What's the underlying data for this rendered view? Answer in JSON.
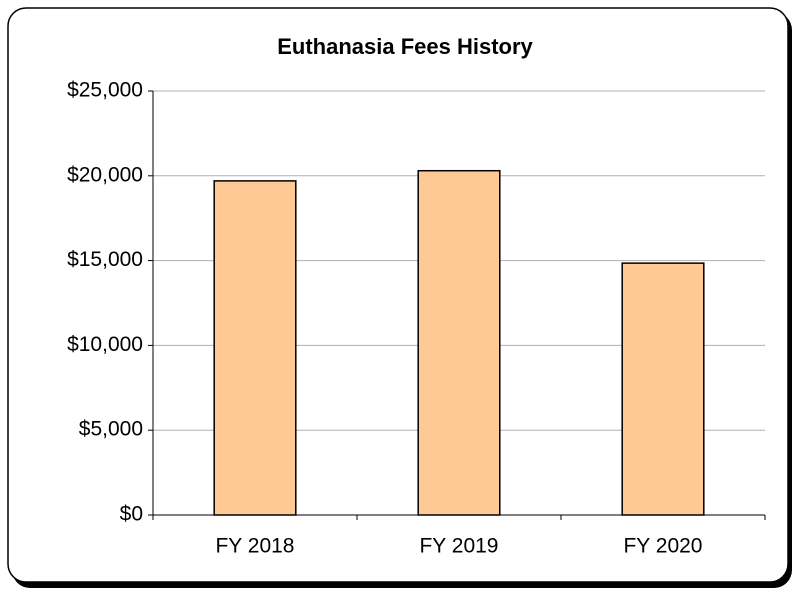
{
  "chart_data": {
    "type": "bar",
    "title": "Euthanasia Fees History",
    "categories": [
      "FY 2018",
      "FY 2019",
      "FY 2020"
    ],
    "values": [
      19700,
      20300,
      14850
    ],
    "color": "#ffc996",
    "ylim": [
      0,
      25000
    ],
    "yticks": [
      {
        "value": 0,
        "label": "$0"
      },
      {
        "value": 5000,
        "label": "$5,000"
      },
      {
        "value": 10000,
        "label": "$10,000"
      },
      {
        "value": 15000,
        "label": "$15,000"
      },
      {
        "value": 20000,
        "label": "$20,000"
      },
      {
        "value": 25000,
        "label": "$25,000"
      }
    ],
    "grid": true
  }
}
